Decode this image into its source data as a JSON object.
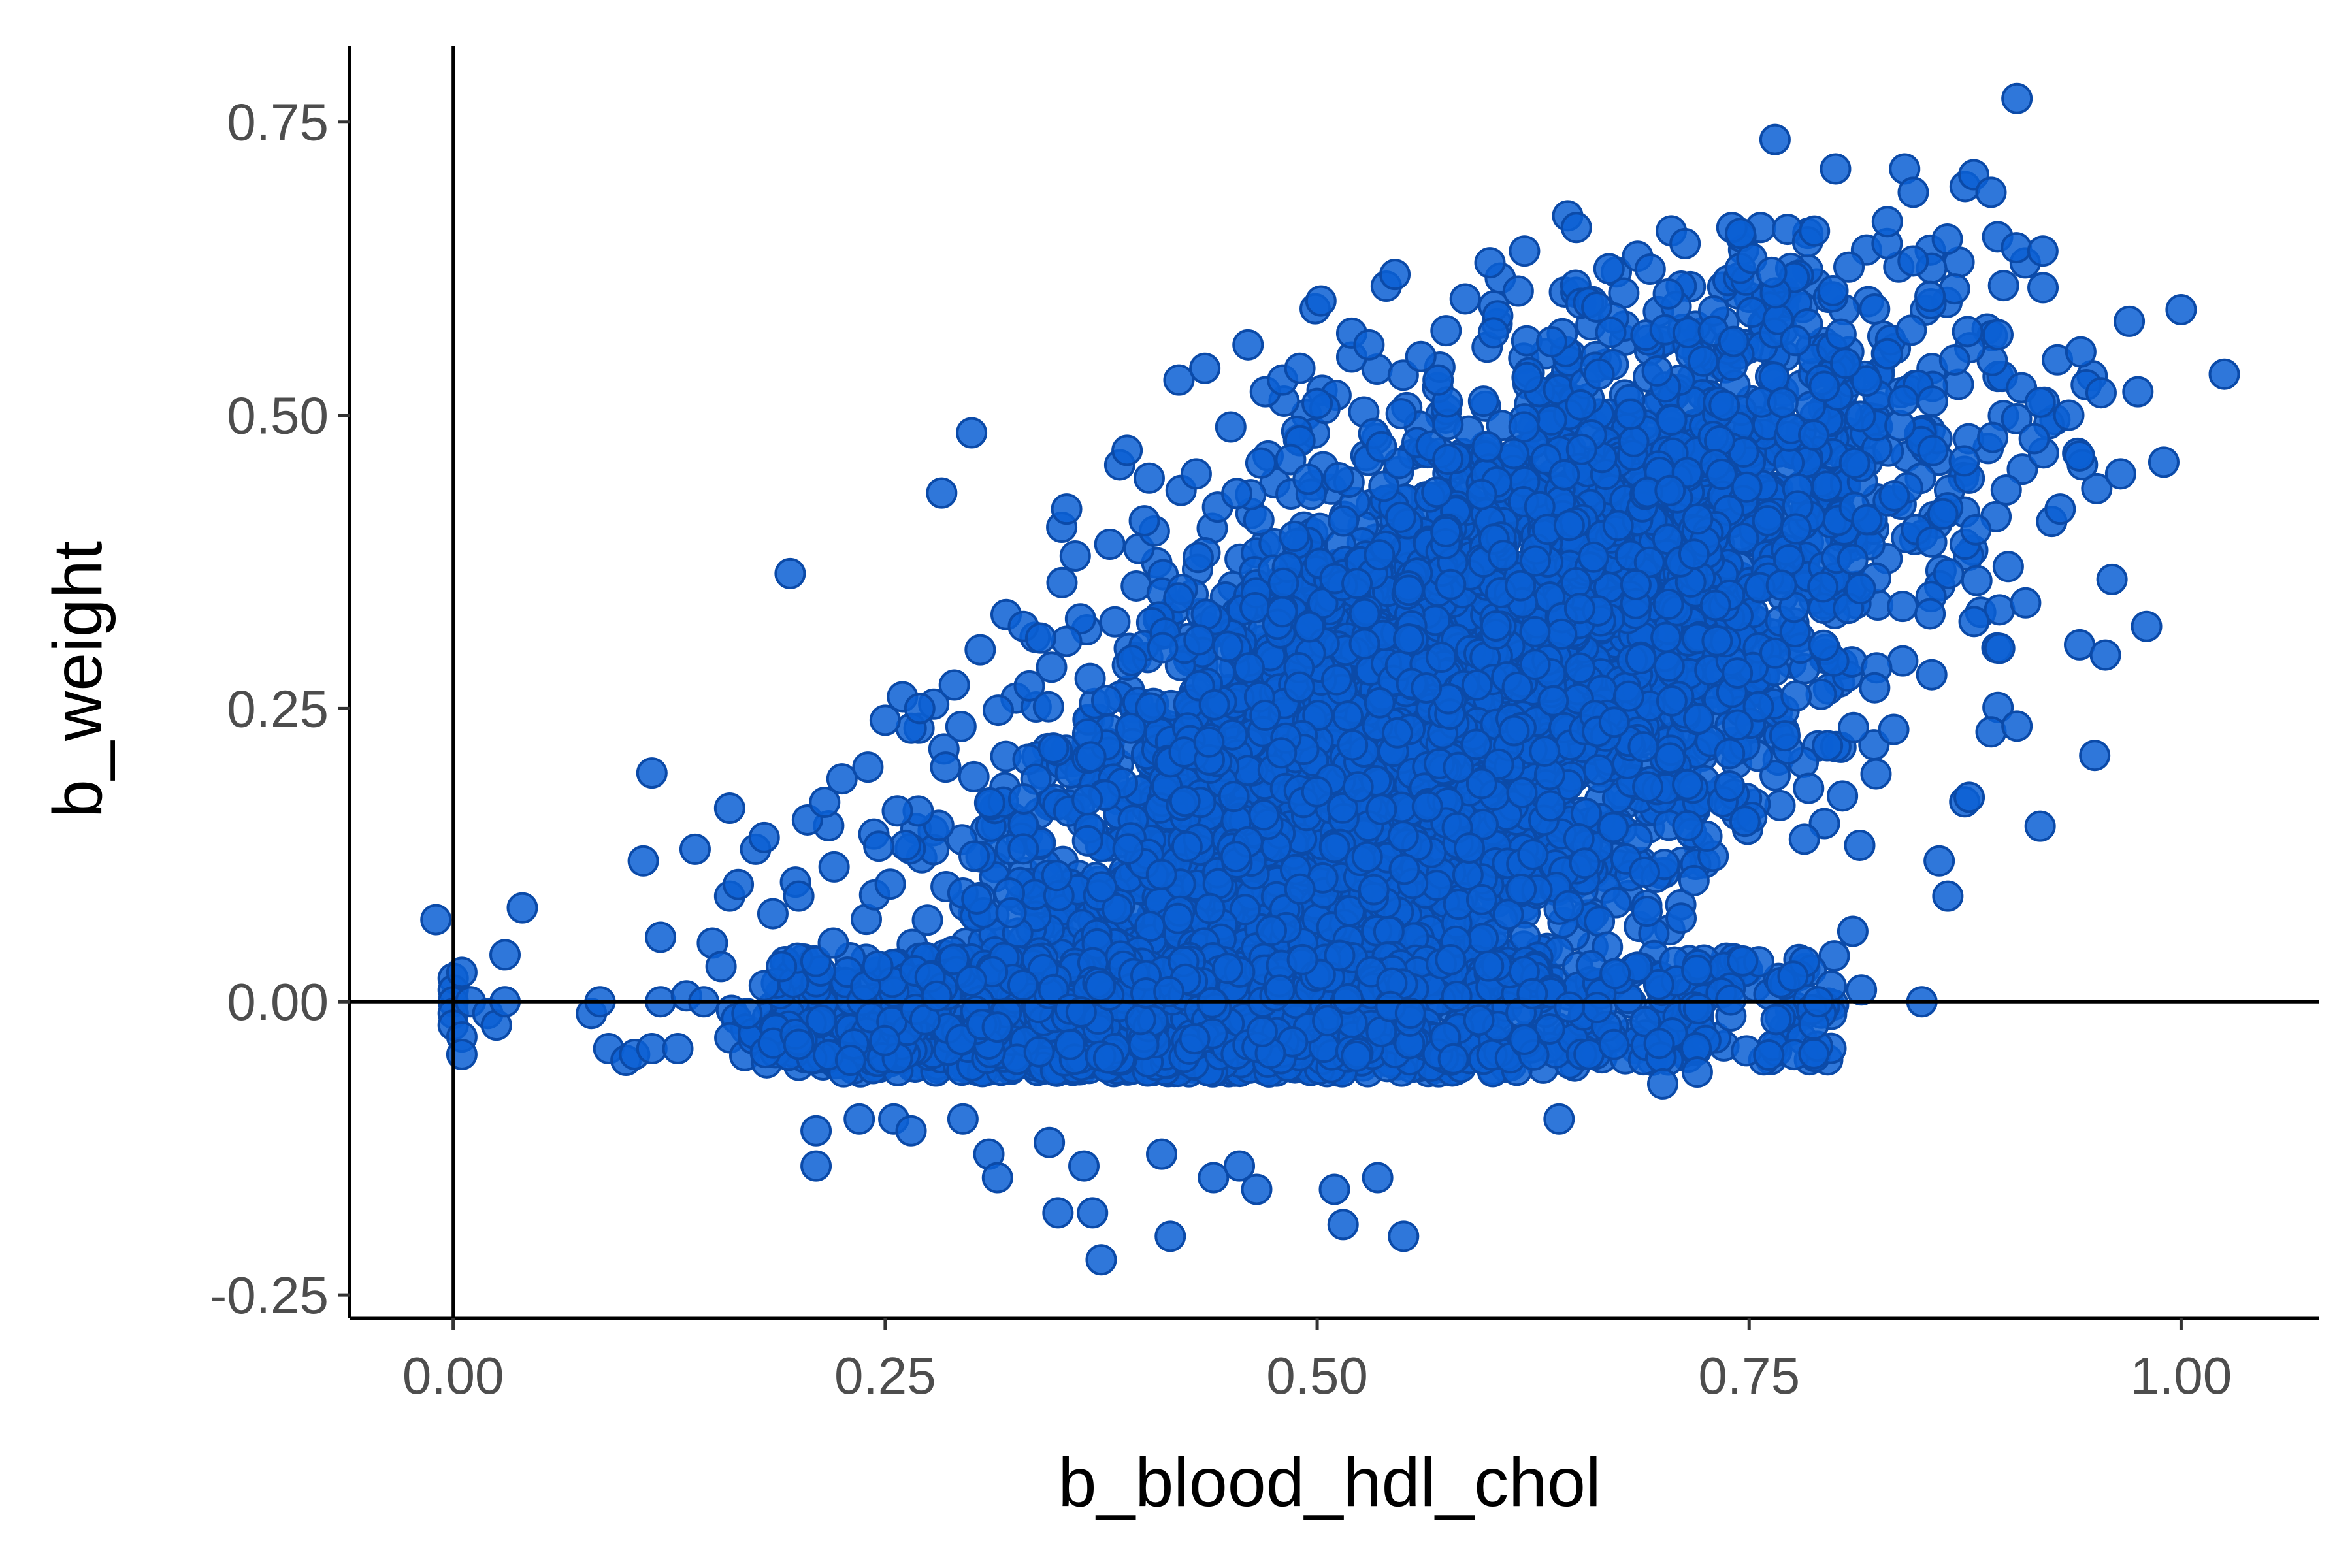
{
  "chart_data": {
    "type": "scatter",
    "title": "",
    "xlabel": "b_blood_hdl_chol",
    "ylabel": "b_weight",
    "xlim": [
      -0.06,
      1.08
    ],
    "ylim": [
      -0.27,
      0.815
    ],
    "x_ticks": [
      0.0,
      0.25,
      0.5,
      0.75,
      1.0
    ],
    "x_tick_labels": [
      "0.00",
      "0.25",
      "0.50",
      "0.75",
      "1.00"
    ],
    "y_ticks": [
      -0.25,
      0.0,
      0.25,
      0.5,
      0.75
    ],
    "y_tick_labels": [
      "-0.25",
      "0.00",
      "0.25",
      "0.50",
      "0.75"
    ],
    "reference_lines": {
      "x": 0.0,
      "y": 0.0
    },
    "grid": false,
    "legend": "none",
    "point_fill": "#0a5fd4",
    "point_stroke": "#0b4aa8",
    "series": [
      {
        "values_description_omitted": false,
        "points": [
          [
            -0.01,
            0.07
          ],
          [
            0.0,
            0.02
          ],
          [
            0.0,
            0.01
          ],
          [
            0.0,
            0.0
          ],
          [
            0.0,
            -0.01
          ],
          [
            0.0,
            -0.02
          ],
          [
            0.005,
            0.025
          ],
          [
            0.005,
            -0.03
          ],
          [
            0.005,
            -0.045
          ],
          [
            0.01,
            0.0
          ],
          [
            0.02,
            -0.01
          ],
          [
            0.025,
            -0.02
          ],
          [
            0.03,
            0.0
          ],
          [
            0.03,
            0.04
          ],
          [
            0.04,
            0.08
          ],
          [
            0.08,
            -0.01
          ],
          [
            0.085,
            0.0
          ],
          [
            0.09,
            -0.04
          ],
          [
            0.1,
            -0.05
          ],
          [
            0.105,
            -0.045
          ],
          [
            0.11,
            0.12
          ],
          [
            0.115,
            0.195
          ],
          [
            0.115,
            -0.04
          ],
          [
            0.12,
            0.055
          ],
          [
            0.12,
            0.0
          ],
          [
            0.13,
            -0.04
          ],
          [
            0.135,
            0.005
          ],
          [
            0.14,
            0.13
          ],
          [
            0.145,
            0.0
          ],
          [
            0.15,
            0.05
          ],
          [
            0.155,
            0.03
          ],
          [
            0.16,
            0.165
          ],
          [
            0.16,
            0.09
          ],
          [
            0.165,
            0.1
          ],
          [
            0.17,
            -0.01
          ],
          [
            0.175,
            0.13
          ],
          [
            0.18,
            0.14
          ],
          [
            0.185,
            0.075
          ],
          [
            0.19,
            0.03
          ],
          [
            0.195,
            0.365
          ],
          [
            0.2,
            0.09
          ],
          [
            0.205,
            0.155
          ],
          [
            0.21,
            -0.11
          ],
          [
            0.21,
            -0.14
          ],
          [
            0.215,
            0.17
          ],
          [
            0.22,
            0.05
          ],
          [
            0.225,
            0.19
          ],
          [
            0.23,
            -0.05
          ],
          [
            0.235,
            -0.1
          ],
          [
            0.24,
            0.2
          ],
          [
            0.25,
            0.24
          ],
          [
            0.255,
            -0.1
          ],
          [
            0.26,
            0.26
          ],
          [
            0.265,
            -0.11
          ],
          [
            0.27,
            0.25
          ],
          [
            0.285,
            0.2
          ],
          [
            0.29,
            0.27
          ],
          [
            0.295,
            -0.1
          ],
          [
            0.3,
            0.485
          ],
          [
            0.305,
            0.3
          ],
          [
            0.31,
            -0.13
          ],
          [
            0.315,
            -0.15
          ],
          [
            0.32,
            0.33
          ],
          [
            0.33,
            0.32
          ],
          [
            0.34,
            0.31
          ],
          [
            0.345,
            -0.12
          ],
          [
            0.35,
            -0.18
          ],
          [
            0.355,
            0.42
          ],
          [
            0.36,
            0.38
          ],
          [
            0.365,
            -0.14
          ],
          [
            0.37,
            -0.18
          ],
          [
            0.375,
            -0.22
          ],
          [
            0.38,
            0.39
          ],
          [
            0.39,
            0.47
          ],
          [
            0.4,
            0.41
          ],
          [
            0.41,
            -0.13
          ],
          [
            0.415,
            -0.2
          ],
          [
            0.42,
            0.53
          ],
          [
            0.43,
            0.45
          ],
          [
            0.435,
            0.54
          ],
          [
            0.44,
            -0.15
          ],
          [
            0.45,
            0.49
          ],
          [
            0.455,
            -0.14
          ],
          [
            0.46,
            0.56
          ],
          [
            0.465,
            -0.16
          ],
          [
            0.47,
            0.52
          ],
          [
            0.48,
            0.53
          ],
          [
            0.49,
            0.54
          ],
          [
            0.5,
            0.51
          ],
          [
            0.51,
            -0.16
          ],
          [
            0.515,
            -0.19
          ],
          [
            0.52,
            0.57
          ],
          [
            0.53,
            0.56
          ],
          [
            0.535,
            -0.15
          ],
          [
            0.54,
            0.61
          ],
          [
            0.545,
            0.62
          ],
          [
            0.55,
            -0.2
          ],
          [
            0.56,
            0.55
          ],
          [
            0.57,
            0.53
          ],
          [
            0.6,
            0.63
          ],
          [
            0.62,
            0.64
          ],
          [
            0.64,
            -0.1
          ],
          [
            0.645,
            0.67
          ],
          [
            0.65,
            0.66
          ],
          [
            0.7,
            -0.07
          ],
          [
            0.72,
            -0.06
          ],
          [
            0.74,
            0.66
          ],
          [
            0.745,
            0.655
          ],
          [
            0.765,
            0.735
          ],
          [
            0.79,
            0.0
          ],
          [
            0.8,
            0.71
          ],
          [
            0.81,
            0.06
          ],
          [
            0.815,
            0.01
          ],
          [
            0.83,
            0.665
          ],
          [
            0.84,
            0.71
          ],
          [
            0.845,
            0.69
          ],
          [
            0.85,
            0.0
          ],
          [
            0.86,
            0.12
          ],
          [
            0.865,
            0.09
          ],
          [
            0.875,
            0.695
          ],
          [
            0.88,
            0.705
          ],
          [
            0.89,
            0.69
          ],
          [
            0.89,
            0.23
          ],
          [
            0.905,
            0.235
          ],
          [
            0.905,
            0.77
          ],
          [
            0.91,
            0.34
          ],
          [
            0.92,
            0.64
          ],
          [
            0.93,
            0.42
          ],
          [
            0.95,
            0.21
          ],
          [
            0.97,
            0.58
          ],
          [
            0.975,
            0.52
          ],
          [
            0.98,
            0.32
          ],
          [
            1.0,
            0.59
          ],
          [
            1.025,
            0.535
          ],
          [
            0.935,
            0.5
          ],
          [
            0.96,
            0.36
          ],
          [
            0.99,
            0.46
          ],
          [
            0.965,
            0.45
          ],
          [
            0.915,
            0.48
          ]
        ]
      }
    ]
  }
}
